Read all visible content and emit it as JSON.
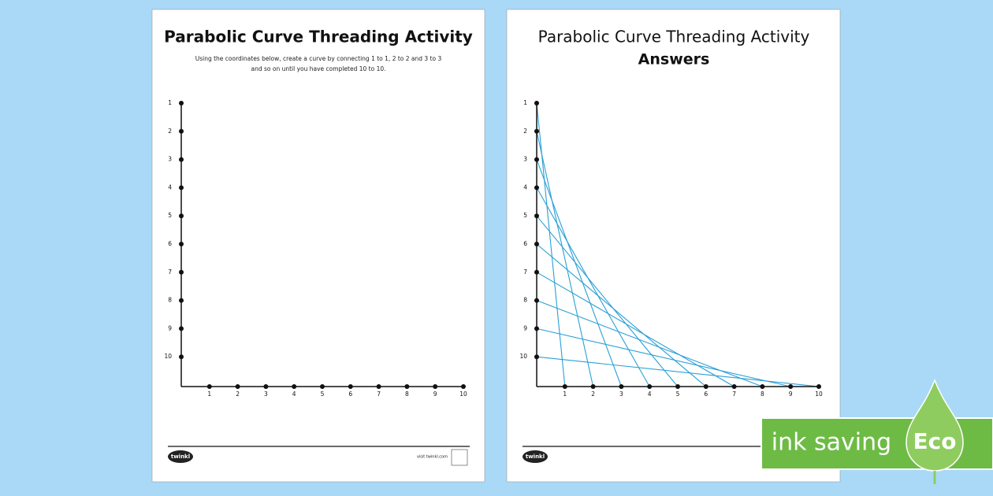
{
  "pages": [
    {
      "title": "Parabolic Curve Threading Activity",
      "instructions": [
        "Using the coordinates below, create a curve by connecting 1 to 1, 2 to 2 and 3 to 3",
        "and so on until you have completed 10 to 10."
      ],
      "vertical_labels": [
        "1",
        "2",
        "3",
        "4",
        "5",
        "6",
        "7",
        "8",
        "9",
        "10"
      ],
      "horizontal_labels": [
        "1",
        "2",
        "3",
        "4",
        "5",
        "6",
        "7",
        "8",
        "9",
        "10"
      ],
      "footer": {
        "logo": "twinkl",
        "link": "visit twinkl.com"
      }
    },
    {
      "title": "Parabolic Curve Threading Activity",
      "subtitle": "Answers",
      "vertical_labels": [
        "1",
        "2",
        "3",
        "4",
        "5",
        "6",
        "7",
        "8",
        "9",
        "10"
      ],
      "horizontal_labels": [
        "1",
        "2",
        "3",
        "4",
        "5",
        "6",
        "7",
        "8",
        "9",
        "10"
      ],
      "footer": {
        "logo": "twinkl"
      }
    }
  ],
  "badge": {
    "text": "ink saving",
    "label": "Eco"
  }
}
